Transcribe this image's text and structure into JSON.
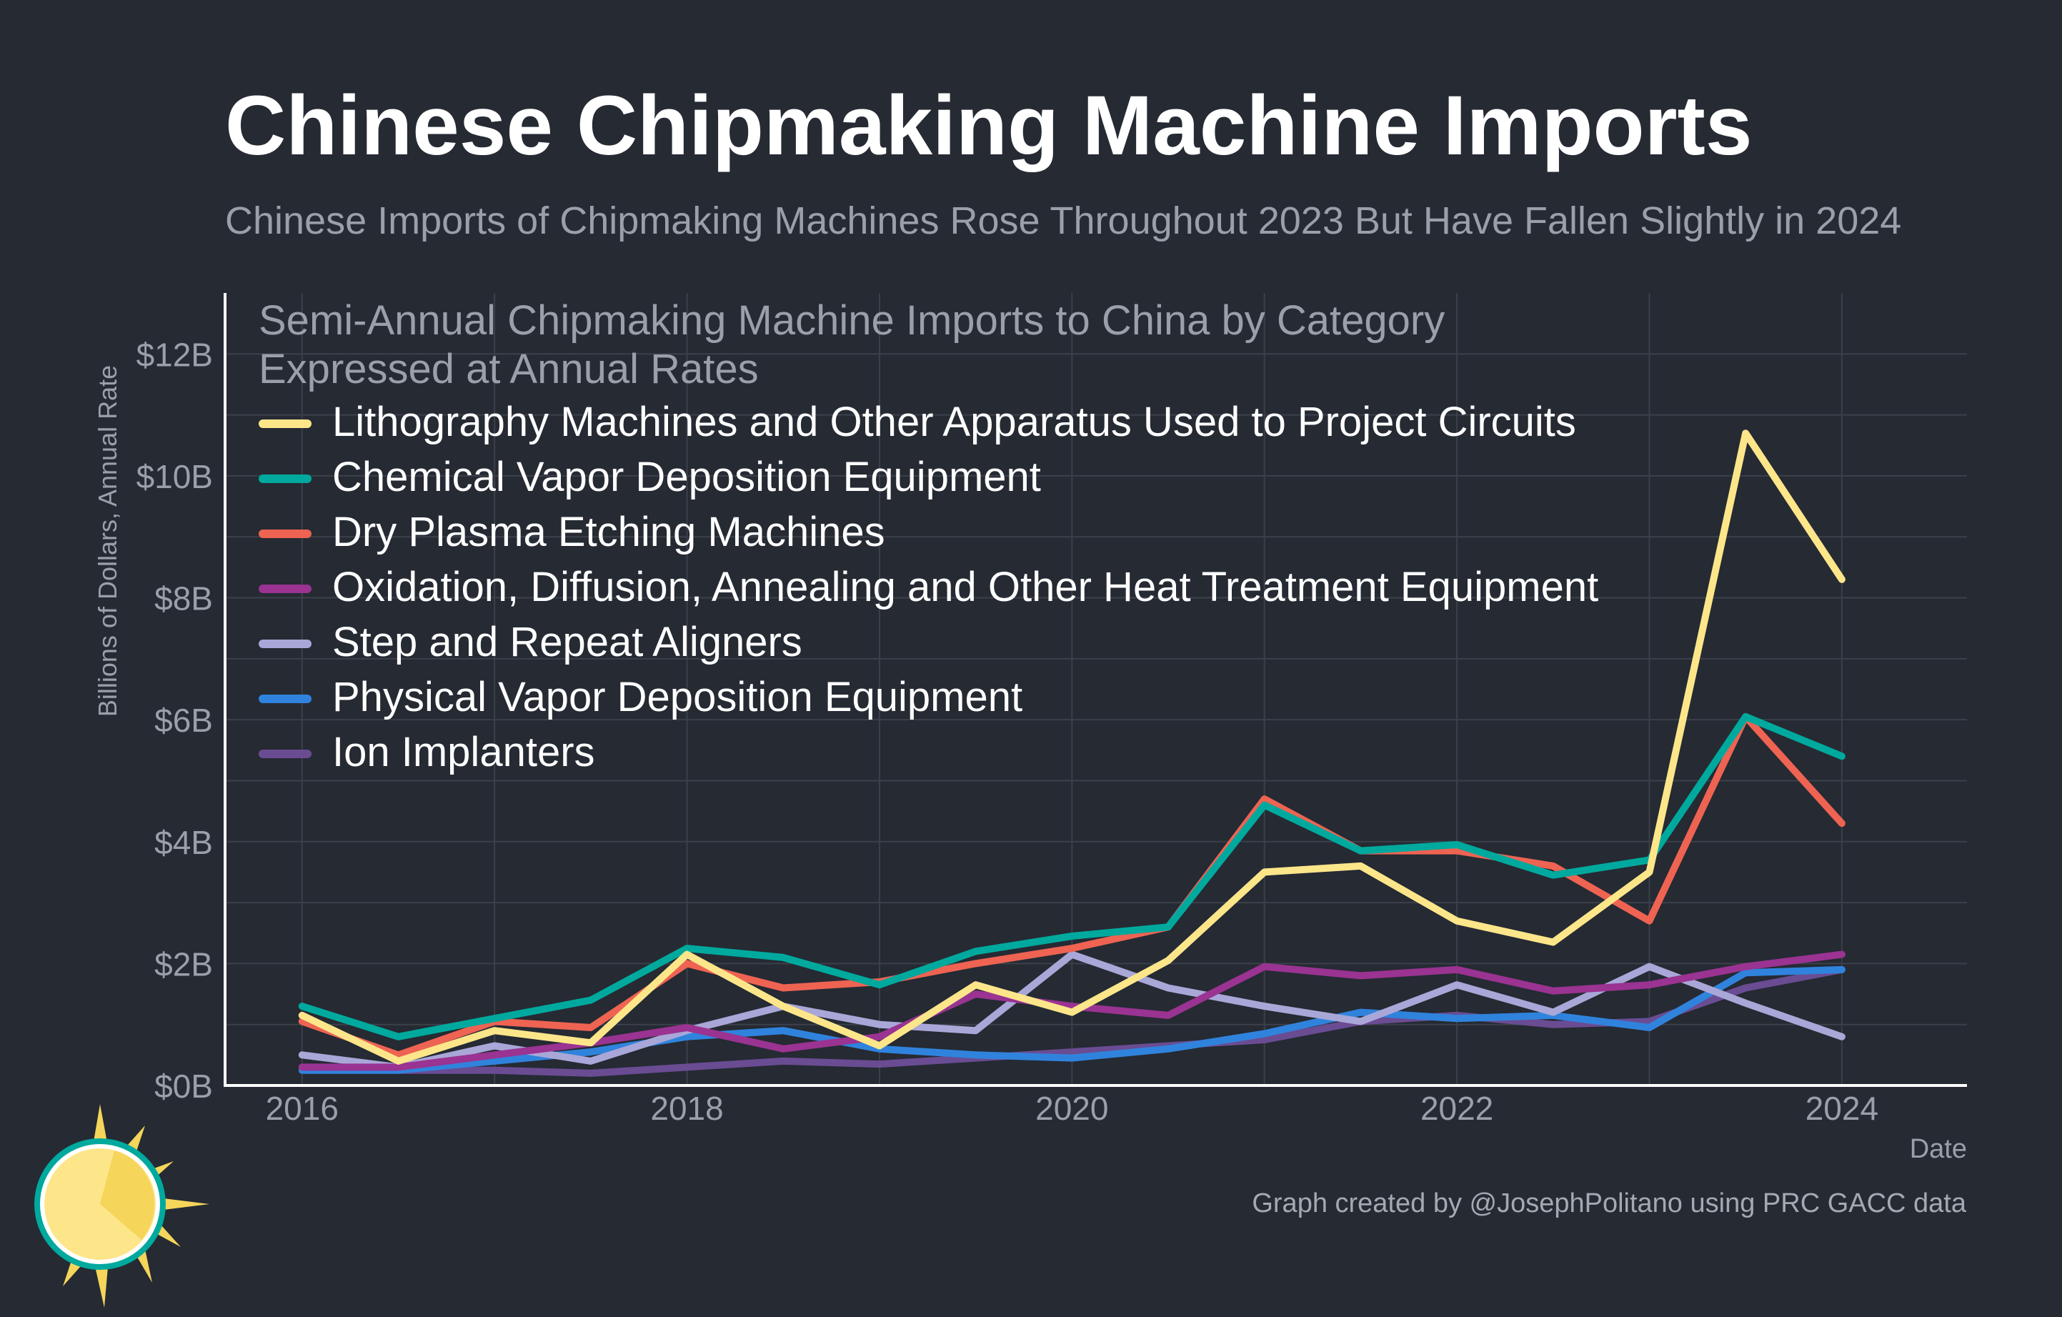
{
  "title": "Chinese Chipmaking Machine Imports",
  "subtitle": "Chinese Imports of Chipmaking Machines Rose Throughout 2023 But Have Fallen Slightly in 2024",
  "credit": "Graph created by @JosephPolitano using PRC GACC data",
  "chart_data": {
    "type": "line",
    "annotation": [
      "Semi-Annual Chipmaking Machine Imports to China by Category",
      "Expressed at Annual Rates"
    ],
    "xlabel": "Date",
    "ylabel": "Billions of Dollars, Annual Rate",
    "xlim": [
      2015.6,
      2024.65
    ],
    "ylim": [
      0,
      13
    ],
    "xticks": [
      2016,
      2018,
      2020,
      2022,
      2024
    ],
    "xtick_labels": [
      "2016",
      "2018",
      "2020",
      "2022",
      "2024"
    ],
    "yticks": [
      0,
      2,
      4,
      6,
      8,
      10,
      12
    ],
    "ytick_labels": [
      "$0B",
      "$2B",
      "$4B",
      "$6B",
      "$8B",
      "$10B",
      "$12B"
    ],
    "grid": true,
    "legend_position": "top-left",
    "x": [
      2016.0,
      2016.5,
      2017.0,
      2017.5,
      2018.0,
      2018.5,
      2019.0,
      2019.5,
      2020.0,
      2020.5,
      2021.0,
      2021.5,
      2022.0,
      2022.5,
      2023.0,
      2023.5,
      2024.0
    ],
    "series": [
      {
        "name": "Lithography Machines and Other Apparatus Used to Project Circuits",
        "color": "#fde68a",
        "values": [
          1.15,
          0.4,
          0.9,
          0.7,
          2.15,
          1.3,
          0.65,
          1.65,
          1.2,
          2.05,
          3.5,
          3.6,
          2.7,
          2.35,
          3.5,
          10.7,
          8.3
        ]
      },
      {
        "name": "Chemical Vapor Deposition Equipment",
        "color": "#00a99d",
        "values": [
          1.3,
          0.8,
          1.1,
          1.4,
          2.25,
          2.1,
          1.65,
          2.2,
          2.45,
          2.6,
          4.6,
          3.85,
          3.95,
          3.45,
          3.7,
          6.05,
          5.4
        ]
      },
      {
        "name": "Dry Plasma Etching Machines",
        "color": "#ee6352",
        "values": [
          1.05,
          0.5,
          1.05,
          0.95,
          2.0,
          1.6,
          1.7,
          2.0,
          2.25,
          2.6,
          4.7,
          3.85,
          3.85,
          3.6,
          2.7,
          6.05,
          4.3
        ]
      },
      {
        "name": "Oxidation, Diffusion, Annealing and Other Heat Treatment Equipment",
        "color": "#9a3391",
        "values": [
          0.3,
          0.3,
          0.5,
          0.7,
          0.95,
          0.6,
          0.8,
          1.5,
          1.3,
          1.15,
          1.95,
          1.8,
          1.9,
          1.55,
          1.65,
          1.95,
          2.15
        ]
      },
      {
        "name": "Step and Repeat Aligners",
        "color": "#a9a7d8",
        "values": [
          0.5,
          0.3,
          0.65,
          0.4,
          0.9,
          1.3,
          1.0,
          0.9,
          2.15,
          1.6,
          1.3,
          1.05,
          1.65,
          1.2,
          1.95,
          1.35,
          0.8
        ]
      },
      {
        "name": "Physical Vapor Deposition Equipment",
        "color": "#3083dc",
        "values": [
          0.25,
          0.25,
          0.4,
          0.55,
          0.8,
          0.9,
          0.6,
          0.5,
          0.45,
          0.6,
          0.85,
          1.2,
          1.1,
          1.15,
          0.95,
          1.85,
          1.9
        ]
      },
      {
        "name": "Ion Implanters",
        "color": "#6a4c93",
        "values": [
          0.3,
          0.25,
          0.25,
          0.2,
          0.3,
          0.4,
          0.35,
          0.45,
          0.55,
          0.65,
          0.75,
          1.05,
          1.15,
          1.0,
          1.05,
          1.6,
          1.9
        ]
      }
    ]
  }
}
